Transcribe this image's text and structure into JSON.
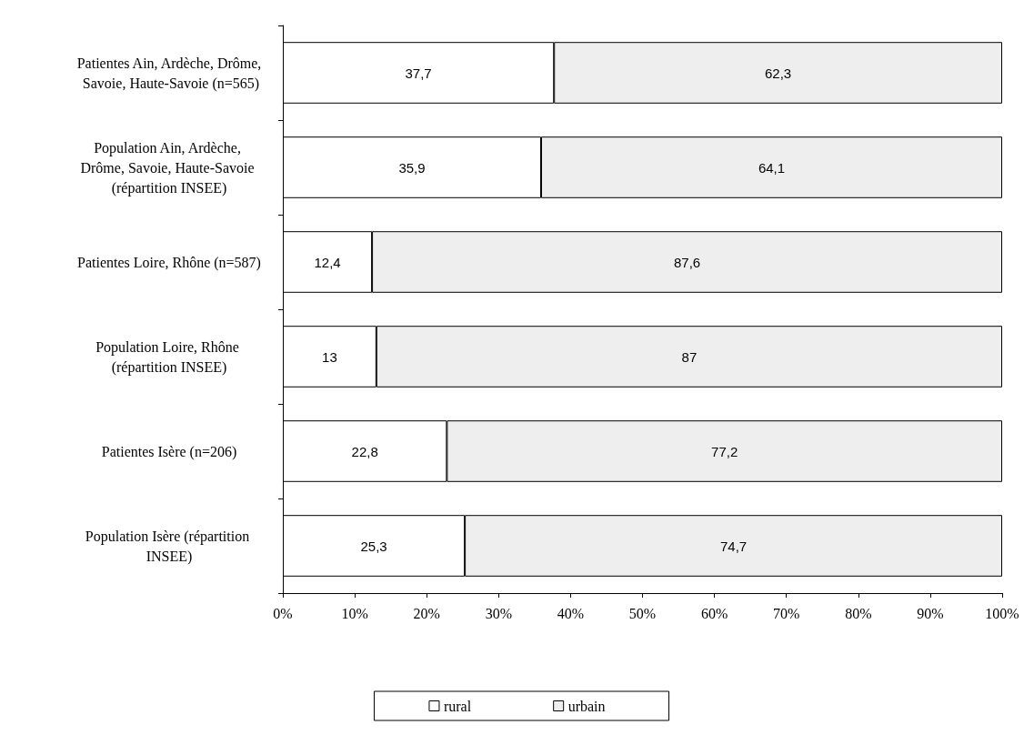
{
  "chart_data": {
    "type": "bar",
    "orientation": "horizontal",
    "stacked": true,
    "categories": [
      "Patientes Ain, Ardèche, Drôme, Savoie, Haute-Savoie (n=565)",
      "Population Ain, Ardèche, Drôme, Savoie, Haute-Savoie (répartition INSEE)",
      "Patientes Loire, Rhône (n=587)",
      "Population Loire, Rhône (répartition INSEE)",
      "Patientes Isère (n=206)",
      "Population Isère (répartition INSEE)"
    ],
    "series": [
      {
        "name": "rural",
        "color": "#ffffff",
        "values": [
          37.7,
          35.9,
          12.4,
          13,
          22.8,
          25.3
        ],
        "value_labels": [
          "37,7",
          "35,9",
          "12,4",
          "13",
          "22,8",
          "25,3"
        ]
      },
      {
        "name": "urbain",
        "color": "#eeeeee",
        "values": [
          62.3,
          64.1,
          87.6,
          87,
          77.2,
          74.7
        ],
        "value_labels": [
          "62,3",
          "64,1",
          "87,6",
          "87",
          "77,2",
          "74,7"
        ]
      }
    ],
    "xlim": [
      0,
      100
    ],
    "xticks": [
      {
        "value": 0,
        "label": "0%"
      },
      {
        "value": 10,
        "label": "10%"
      },
      {
        "value": 20,
        "label": "20%"
      },
      {
        "value": 30,
        "label": "30%"
      },
      {
        "value": 40,
        "label": "40%"
      },
      {
        "value": 50,
        "label": "50%"
      },
      {
        "value": 60,
        "label": "60%"
      },
      {
        "value": 70,
        "label": "70%"
      },
      {
        "value": 80,
        "label": "80%"
      },
      {
        "value": 90,
        "label": "90%"
      },
      {
        "value": 100,
        "label": "100%"
      }
    ],
    "grid": false,
    "legend": "bottom"
  }
}
